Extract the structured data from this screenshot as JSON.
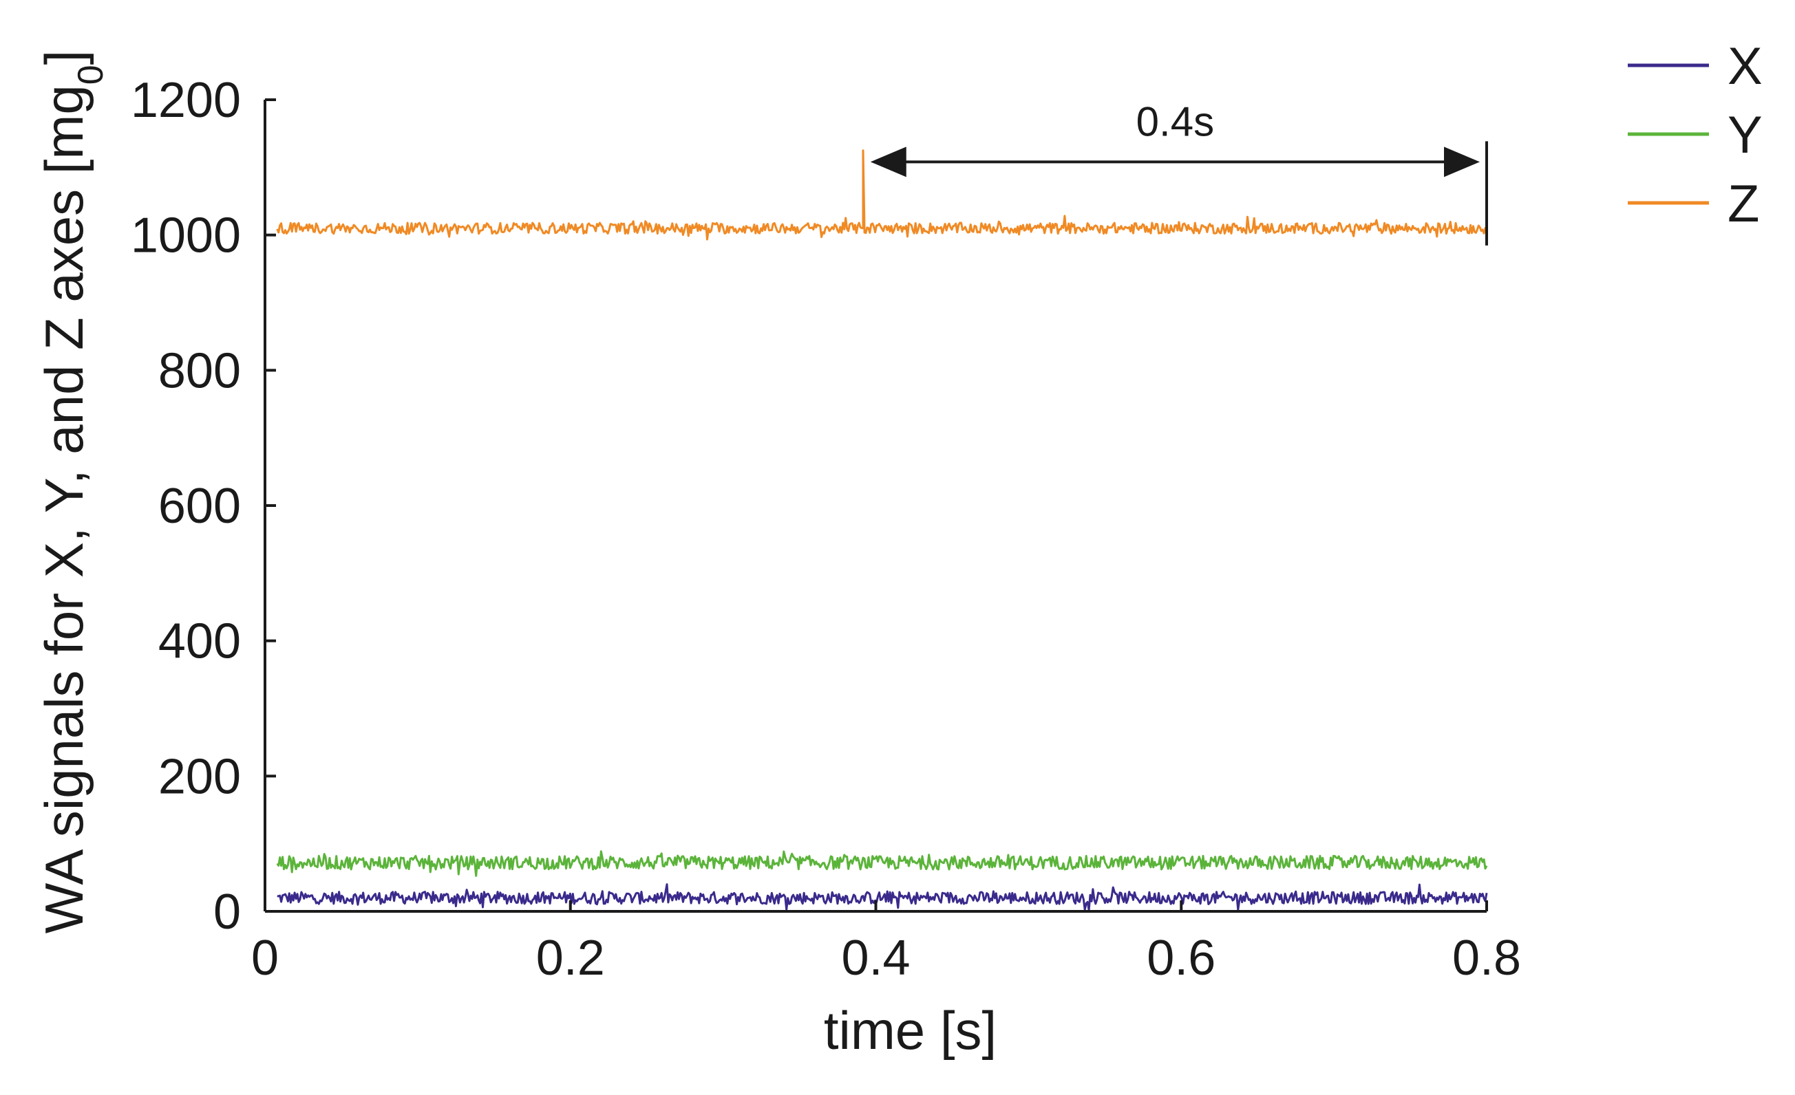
{
  "chart_data": {
    "type": "line",
    "xlabel": "time [s]",
    "ylabel": "WA signals for X, Y, and Z axes [mg",
    "ylabel_subscript": "0",
    "ylabel_suffix": "]",
    "xlim": [
      0,
      0.8
    ],
    "ylim": [
      0,
      1200
    ],
    "xticks": [
      "0",
      "0.2",
      "0.4",
      "0.6",
      "0.8"
    ],
    "yticks": [
      "0",
      "200",
      "400",
      "600",
      "800",
      "1000",
      "1200"
    ],
    "grid": false,
    "legend_position": "top-right",
    "series": [
      {
        "name": "X",
        "color": "#3b2a8c",
        "mean": 20,
        "noise": 9,
        "x_start": 0.008,
        "x_end": 0.8
      },
      {
        "name": "Y",
        "color": "#5bb43a",
        "mean": 72,
        "noise": 10,
        "x_start": 0.008,
        "x_end": 0.8
      },
      {
        "name": "Z",
        "color": "#f08a24",
        "mean": 1010,
        "noise": 8,
        "x_start": 0.008,
        "x_end": 0.8,
        "spike": {
          "x": 0.392,
          "y": 1125
        }
      }
    ],
    "annotations": [
      {
        "label": "0.4s",
        "from_x": 0.392,
        "to_x": 0.8,
        "y": 1100
      }
    ]
  }
}
